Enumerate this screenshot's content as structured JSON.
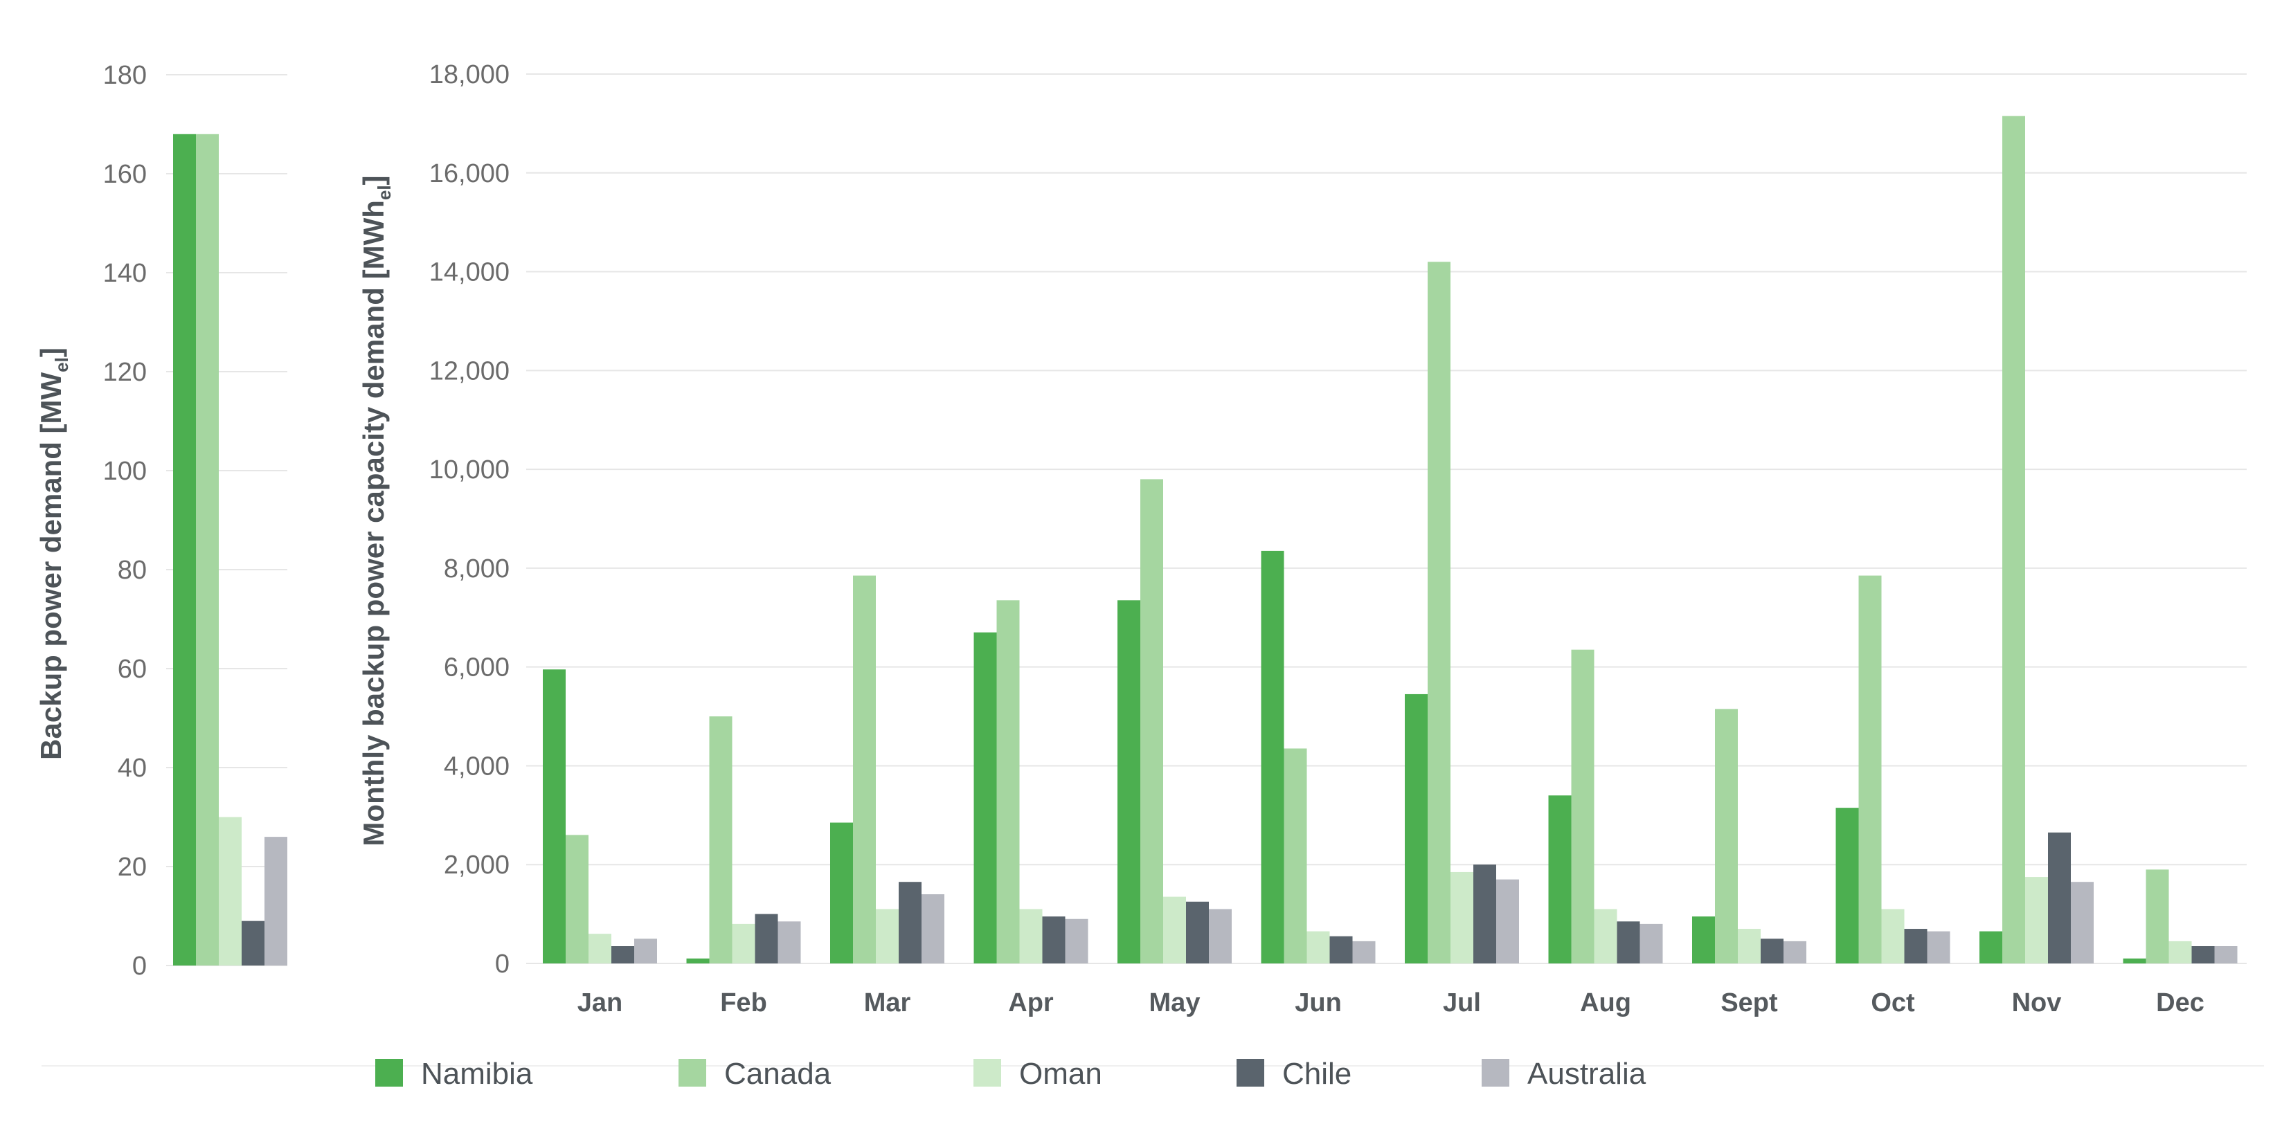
{
  "chart_data": [
    {
      "type": "bar",
      "title": "",
      "xlabel": "",
      "ylabel": "Backup power demand [MW",
      "ylabel_sub": "el",
      "ylabel_close": "]",
      "ylim": [
        0,
        180
      ],
      "yticks": [
        "0",
        "20",
        "40",
        "60",
        "80",
        "100",
        "120",
        "140",
        "160",
        "180"
      ],
      "grid": true,
      "series": [
        {
          "name": "Namibia",
          "values": [
            168
          ]
        },
        {
          "name": "Canada",
          "values": [
            168
          ]
        },
        {
          "name": "Oman",
          "values": [
            30
          ]
        },
        {
          "name": "Chile",
          "values": [
            9
          ]
        },
        {
          "name": "Australia",
          "values": [
            26
          ]
        }
      ]
    },
    {
      "type": "bar",
      "title": "",
      "xlabel": "",
      "ylabel": "Monthly backup power capacity demand [MWh",
      "ylabel_sub": "el",
      "ylabel_close": "]",
      "ylim": [
        0,
        18000
      ],
      "yticks": [
        "0",
        "2,000",
        "4,000",
        "6,000",
        "8,000",
        "10,000",
        "12,000",
        "14,000",
        "16,000",
        "18,000"
      ],
      "grid": true,
      "legend_position": "bottom",
      "categories": [
        "Jan",
        "Feb",
        "Mar",
        "Apr",
        "May",
        "Jun",
        "Jul",
        "Aug",
        "Sept",
        "Oct",
        "Nov",
        "Dec"
      ],
      "series": [
        {
          "name": "Namibia",
          "color": "#4caf50",
          "values": [
            5950,
            100,
            2850,
            6700,
            7350,
            8350,
            5450,
            3400,
            950,
            3150,
            650,
            100
          ]
        },
        {
          "name": "Canada",
          "color": "#a5d6a0",
          "values": [
            2600,
            5000,
            7850,
            7350,
            9800,
            4350,
            14200,
            6350,
            5150,
            7850,
            17150,
            1900
          ]
        },
        {
          "name": "Oman",
          "color": "#cdeac9",
          "values": [
            600,
            800,
            1100,
            1100,
            1350,
            650,
            1850,
            1100,
            700,
            1100,
            1750,
            450
          ]
        },
        {
          "name": "Chile",
          "color": "#5a646d",
          "values": [
            350,
            1000,
            1650,
            950,
            1250,
            550,
            2000,
            850,
            500,
            700,
            2650,
            350
          ]
        },
        {
          "name": "Australia",
          "color": "#b6b8c0",
          "values": [
            500,
            850,
            1400,
            900,
            1100,
            450,
            1700,
            800,
            450,
            650,
            1650,
            350
          ]
        }
      ]
    }
  ]
}
